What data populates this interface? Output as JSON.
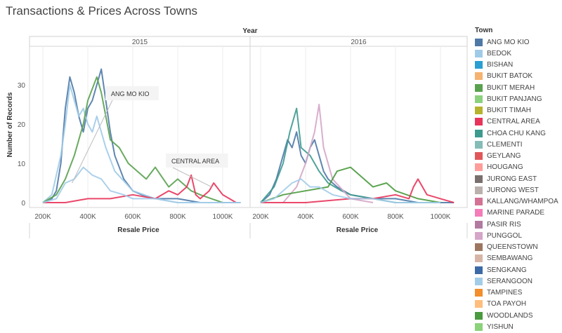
{
  "title": "Transactions & Prices Across Towns",
  "chart_data": {
    "type": "line",
    "column_header": "Year",
    "panels": [
      "2015",
      "2016"
    ],
    "xlabel": "Resale Price",
    "ylabel": "Number of Records",
    "x_ticks": [
      {
        "value": 200000,
        "label": "200K"
      },
      {
        "value": 400000,
        "label": "400K"
      },
      {
        "value": 600000,
        "label": "600K"
      },
      {
        "value": 800000,
        "label": "800K"
      },
      {
        "value": 1000000,
        "label": "1000K"
      }
    ],
    "y_ticks": [
      0,
      10,
      20,
      30
    ],
    "xlim": [
      160000,
      1110000
    ],
    "ylim": [
      -1,
      37
    ],
    "legend": {
      "title": "Town",
      "placement": "right",
      "items": [
        {
          "name": "ANG MO KIO",
          "color": "#4e79a7"
        },
        {
          "name": "BEDOK",
          "color": "#a0cbe8"
        },
        {
          "name": "BISHAN",
          "color": "#2a9fd0"
        },
        {
          "name": "BUKIT BATOK",
          "color": "#f5b36f"
        },
        {
          "name": "BUKIT MERAH",
          "color": "#59a14f"
        },
        {
          "name": "BUKIT PANJANG",
          "color": "#8cd17d"
        },
        {
          "name": "BUKIT TIMAH",
          "color": "#b6b22d"
        },
        {
          "name": "CENTRAL AREA",
          "color": "#e8345a"
        },
        {
          "name": "CHOA CHU KANG",
          "color": "#3d9a8f"
        },
        {
          "name": "CLEMENTI",
          "color": "#86bcb6"
        },
        {
          "name": "GEYLANG",
          "color": "#e15759"
        },
        {
          "name": "HOUGANG",
          "color": "#ff9d9a"
        },
        {
          "name": "JURONG EAST",
          "color": "#79706e"
        },
        {
          "name": "JURONG WEST",
          "color": "#bab0ac"
        },
        {
          "name": "KALLANG/WHAMPOA",
          "color": "#d37295"
        },
        {
          "name": "MARINE PARADE",
          "color": "#f47cb8"
        },
        {
          "name": "PASIR RIS",
          "color": "#b07aa1"
        },
        {
          "name": "PUNGGOL",
          "color": "#d4a6c8"
        },
        {
          "name": "QUEENSTOWN",
          "color": "#9d7660"
        },
        {
          "name": "SEMBAWANG",
          "color": "#d7b5a6"
        },
        {
          "name": "SENGKANG",
          "color": "#3c6aa6"
        },
        {
          "name": "SERANGOON",
          "color": "#a3cce9"
        },
        {
          "name": "TAMPINES",
          "color": "#f28e2b"
        },
        {
          "name": "TOA PAYOH",
          "color": "#ffbe7d"
        },
        {
          "name": "WOODLANDS",
          "color": "#4a9a3e"
        },
        {
          "name": "YISHUN",
          "color": "#8bd27a"
        }
      ]
    },
    "annotations": [
      {
        "panel": 0,
        "text": "ANG MO KIO",
        "x": 330000,
        "y": 5
      },
      {
        "panel": 0,
        "text": "CENTRAL AREA",
        "x": 950000,
        "y": 4
      }
    ],
    "series": [
      {
        "name": "ANG MO KIO",
        "panel": "2015",
        "x": [
          200000,
          240000,
          260000,
          280000,
          300000,
          320000,
          340000,
          360000,
          380000,
          400000,
          420000,
          440000,
          460000,
          480000,
          500000,
          520000,
          560000,
          600000,
          640000,
          700000,
          800000,
          900000,
          1000000,
          1080000
        ],
        "y": [
          0,
          1,
          3,
          10,
          24,
          32,
          28,
          22,
          18,
          24,
          26,
          30,
          34,
          26,
          18,
          12,
          6,
          3,
          2,
          1,
          1,
          0,
          0,
          0
        ]
      },
      {
        "name": "BEDOK",
        "panel": "2015",
        "x": [
          200000,
          240000,
          280000,
          300000,
          320000,
          340000,
          360000,
          380000,
          400000,
          420000,
          440000,
          480000,
          520000,
          600000,
          700000,
          800000,
          900000,
          1000000
        ],
        "y": [
          0,
          2,
          12,
          20,
          30,
          26,
          22,
          24,
          20,
          18,
          22,
          14,
          8,
          3,
          1,
          0,
          0,
          0
        ]
      },
      {
        "name": "BUKIT MERAH",
        "panel": "2015",
        "x": [
          200000,
          260000,
          300000,
          340000,
          380000,
          400000,
          440000,
          460000,
          500000,
          540000,
          580000,
          620000,
          660000,
          700000,
          760000,
          800000,
          860000,
          900000,
          950000,
          1000000
        ],
        "y": [
          0,
          2,
          6,
          12,
          20,
          26,
          32,
          28,
          16,
          14,
          10,
          8,
          6,
          9,
          4,
          6,
          3,
          2,
          1,
          0
        ]
      },
      {
        "name": "CENTRAL AREA",
        "panel": "2015",
        "x": [
          200000,
          300000,
          400000,
          500000,
          600000,
          700000,
          760000,
          800000,
          840000,
          860000,
          880000,
          900000,
          940000,
          960000,
          1000000,
          1060000
        ],
        "y": [
          0,
          0,
          1,
          1,
          2,
          1,
          3,
          2,
          4,
          7,
          2,
          1,
          3,
          5,
          2,
          0
        ]
      },
      {
        "name": "SERANGOON",
        "panel": "2015",
        "x": [
          200000,
          260000,
          300000,
          340000,
          380000,
          420000,
          460000,
          500000,
          560000,
          600000,
          700000,
          800000,
          900000,
          1000000,
          1080000
        ],
        "y": [
          0,
          1,
          5,
          6,
          9,
          7,
          6,
          3,
          2,
          1,
          1,
          0,
          0,
          0,
          0
        ]
      },
      {
        "name": "ANG MO KIO",
        "panel": "2016",
        "x": [
          200000,
          240000,
          270000,
          300000,
          320000,
          340000,
          360000,
          380000,
          400000,
          420000,
          440000,
          460000,
          480000,
          500000,
          540000,
          600000,
          700000,
          800000,
          900000,
          1000000,
          1060000
        ],
        "y": [
          0,
          2,
          6,
          12,
          16,
          14,
          18,
          12,
          10,
          14,
          16,
          12,
          8,
          6,
          4,
          2,
          1,
          1,
          0,
          0,
          0
        ]
      },
      {
        "name": "CHOA CHU KANG",
        "panel": "2016",
        "x": [
          200000,
          260000,
          300000,
          330000,
          360000,
          380000,
          420000,
          460000,
          500000,
          560000,
          600000,
          700000,
          800000,
          900000,
          1000000
        ],
        "y": [
          0,
          4,
          10,
          18,
          24,
          14,
          12,
          8,
          5,
          3,
          2,
          1,
          0,
          0,
          0
        ]
      },
      {
        "name": "PUNGGOL",
        "panel": "2016",
        "x": [
          300000,
          360000,
          400000,
          440000,
          460000,
          480000,
          520000,
          600000,
          700000
        ],
        "y": [
          0,
          4,
          10,
          18,
          25,
          14,
          6,
          1,
          0
        ]
      },
      {
        "name": "WOODLANDS",
        "panel": "2016",
        "x": [
          200000,
          300000,
          400000,
          500000,
          540000,
          600000,
          660000,
          700000,
          760000,
          800000,
          850000,
          900000,
          1000000
        ],
        "y": [
          0,
          2,
          3,
          4,
          8,
          9,
          6,
          4,
          5,
          3,
          2,
          1,
          0
        ]
      },
      {
        "name": "CENTRAL AREA",
        "panel": "2016",
        "x": [
          200000,
          400000,
          600000,
          700000,
          800000,
          860000,
          880000,
          900000,
          940000,
          1000000,
          1060000
        ],
        "y": [
          0,
          0,
          1,
          1,
          2,
          1,
          4,
          6,
          2,
          1,
          0
        ]
      },
      {
        "name": "SERANGOON",
        "panel": "2016",
        "x": [
          200000,
          260000,
          300000,
          340000,
          380000,
          420000,
          460000,
          520000,
          600000,
          700000,
          800000,
          900000,
          1000000
        ],
        "y": [
          0,
          1,
          3,
          5,
          6,
          4,
          4,
          2,
          1,
          1,
          0,
          0,
          0
        ]
      }
    ]
  }
}
